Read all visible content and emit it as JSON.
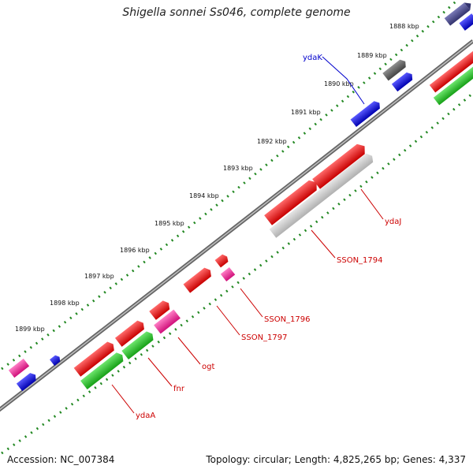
{
  "title": "Shigella sonnei Ss046, complete genome",
  "footer": {
    "accession": "Accession: NC_007384",
    "summary": "Topology: circular; Length: 4,825,265 bp; Genes: 4,337"
  },
  "ruler": {
    "ticks": [
      "1888 kbp",
      "1889 kbp",
      "1890 kbp",
      "1891 kbp",
      "1892 kbp",
      "1893 kbp",
      "1894 kbp",
      "1895 kbp",
      "1896 kbp",
      "1897 kbp",
      "1898 kbp",
      "1899 kbp"
    ]
  },
  "gene_labels": [
    {
      "name": "ydaK",
      "color": "#0000cc"
    },
    {
      "name": "ydaJ",
      "color": "#cc0000"
    },
    {
      "name": "SSON_1794",
      "color": "#cc0000"
    },
    {
      "name": "SSON_1796",
      "color": "#cc0000"
    },
    {
      "name": "SSON_1797",
      "color": "#cc0000"
    },
    {
      "name": "ogt",
      "color": "#cc0000"
    },
    {
      "name": "fnr",
      "color": "#cc0000"
    },
    {
      "name": "ydaA",
      "color": "#cc0000"
    }
  ],
  "colors": {
    "red": "#ee0000",
    "blue": "#0000ee",
    "green": "#22bb22",
    "magenta": "#ee2299",
    "grey": "#555555",
    "lightgrey": "#c8c8c8",
    "navy": "#444488",
    "ruler": "#228822",
    "backbone": "#777777"
  }
}
